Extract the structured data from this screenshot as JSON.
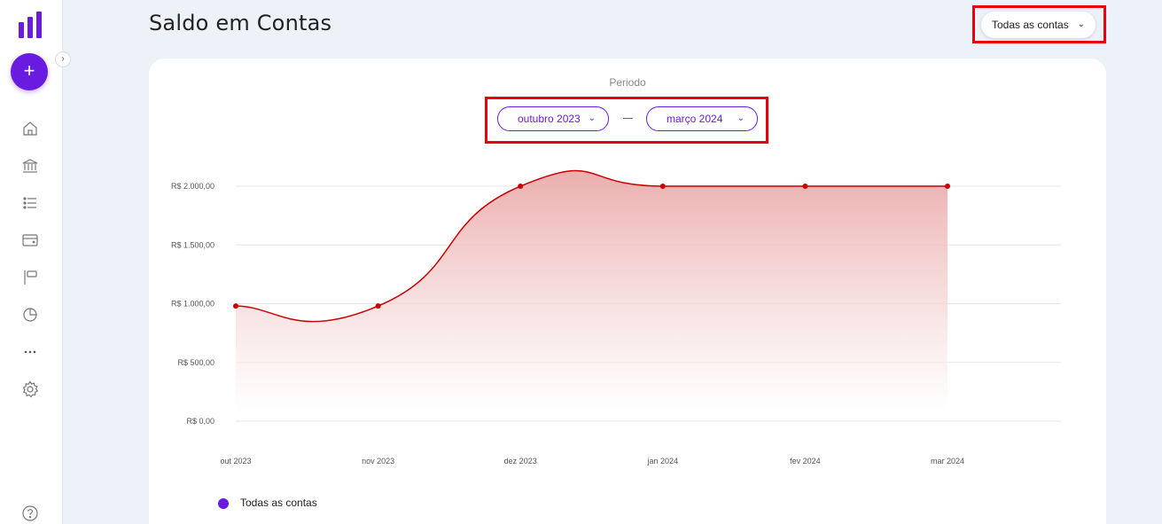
{
  "sidebar": {
    "add_label": "+",
    "collapse_label": "›",
    "icons": [
      "home-icon",
      "bank-icon",
      "list-icon",
      "wallet-icon",
      "flag-icon",
      "pie-chart-icon",
      "more-icon",
      "settings-icon"
    ],
    "help_icon": "help-icon"
  },
  "header": {
    "title": "Saldo em Contas",
    "account_select": "Todas as contas"
  },
  "period": {
    "label": "Periodo",
    "start": "outubro 2023",
    "end": "março 2024"
  },
  "colors": {
    "accent": "#6a1be0",
    "line": "#cc0000",
    "highlight": "#e8000b"
  },
  "chart_data": {
    "type": "area",
    "categories": [
      "out 2023",
      "nov 2023",
      "dez 2023",
      "jan 2024",
      "fev 2024",
      "mar 2024"
    ],
    "series": [
      {
        "name": "Todas as contas",
        "values": [
          980,
          980,
          2000,
          2000,
          2000,
          2000
        ]
      }
    ],
    "yticks": [
      0,
      500,
      1000,
      1500,
      2000
    ],
    "ytick_labels": [
      "R$ 0,00",
      "R$ 500,00",
      "R$ 1.000,00",
      "R$ 1.500,00",
      "R$ 2.000,00"
    ],
    "ylim": [
      0,
      2000
    ],
    "grid": true,
    "legend": "bottom-left"
  }
}
